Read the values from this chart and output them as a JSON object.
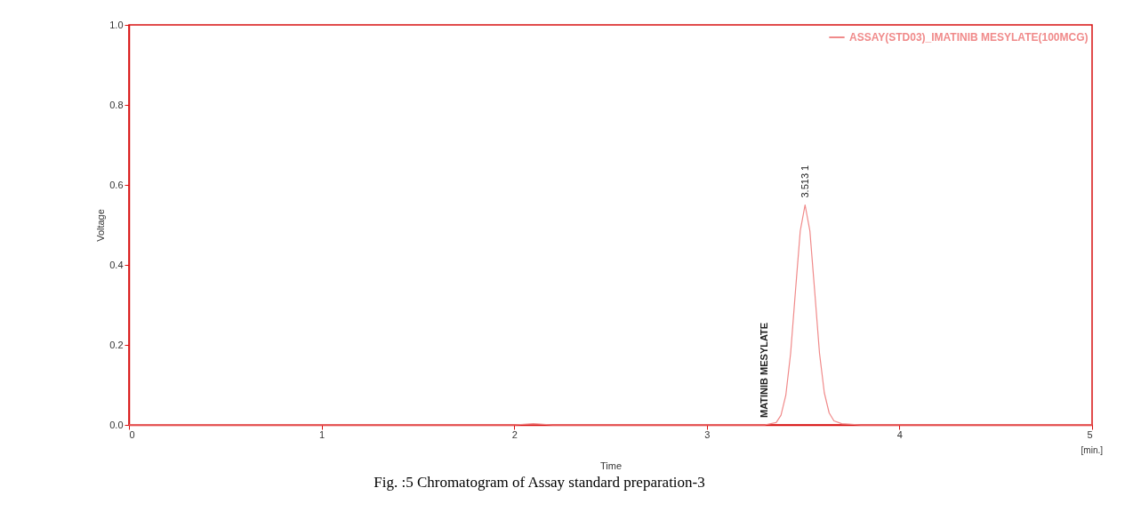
{
  "chart_data": {
    "type": "line",
    "xlabel": "Time",
    "ylabel": "Voltage",
    "x": [
      0,
      1,
      2.0,
      2.1,
      2.2,
      3.3,
      3.36,
      3.385,
      3.41,
      3.435,
      3.46,
      3.485,
      3.51,
      3.535,
      3.56,
      3.585,
      3.61,
      3.635,
      3.66,
      3.7,
      3.8,
      4,
      5
    ],
    "series": [
      {
        "name": "ASSAY(STD03)_IMATINIB MESYLATE(100MCG)",
        "color": "#f08a8a",
        "values": [
          0,
          0,
          0,
          0.003,
          0,
          0,
          0.006,
          0.024,
          0.074,
          0.179,
          0.334,
          0.485,
          0.55,
          0.485,
          0.334,
          0.179,
          0.08,
          0.03,
          0.01,
          0.003,
          0,
          0,
          0
        ]
      }
    ],
    "xlim": [
      0,
      5
    ],
    "xticks": [
      0,
      1,
      2,
      3,
      4,
      5
    ],
    "ylim": [
      0,
      1.0
    ],
    "yticks": [
      {
        "value": 0,
        "label": "0.0"
      },
      0.2,
      0.4,
      0.6,
      0.8,
      {
        "value": 1,
        "label": "1.0"
      }
    ],
    "grid": false,
    "legend": "top right",
    "marker": "none",
    "line_style": "solid",
    "annotations": [
      {
        "text": "3.513  1",
        "x": 3.513,
        "y": 0.55
      },
      {
        "text": "MATINIB MESYLATE",
        "x": 3.3,
        "y": 0.0
      },
      "[min.]",
      "Fig. :5 Chromatogram of Assay standard preparation-3"
    ]
  }
}
